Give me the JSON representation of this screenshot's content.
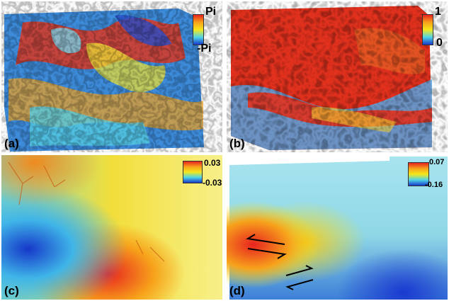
{
  "panels": [
    {
      "label": "(a)",
      "colorbar": {
        "max": "Pi",
        "min": "-Pi"
      }
    },
    {
      "label": "(b)",
      "colorbar": {
        "max": "1",
        "min": "0"
      }
    },
    {
      "label": "(c)",
      "colorbar": {
        "max": "0.03",
        "min": "-0.03"
      }
    },
    {
      "label": "(d)",
      "colorbar": {
        "max": "0.07",
        "min": "-0.16"
      }
    }
  ],
  "colors": {
    "jet_red": "#e8231f",
    "jet_orange": "#f7a21b",
    "jet_yellow": "#f5e71a",
    "jet_cyan": "#4fd5e8",
    "jet_blue": "#1638c9",
    "background": "#ffffff"
  },
  "icons": [
    "fault-arrows-left-lateral",
    "fault-arrows-right-lateral"
  ]
}
